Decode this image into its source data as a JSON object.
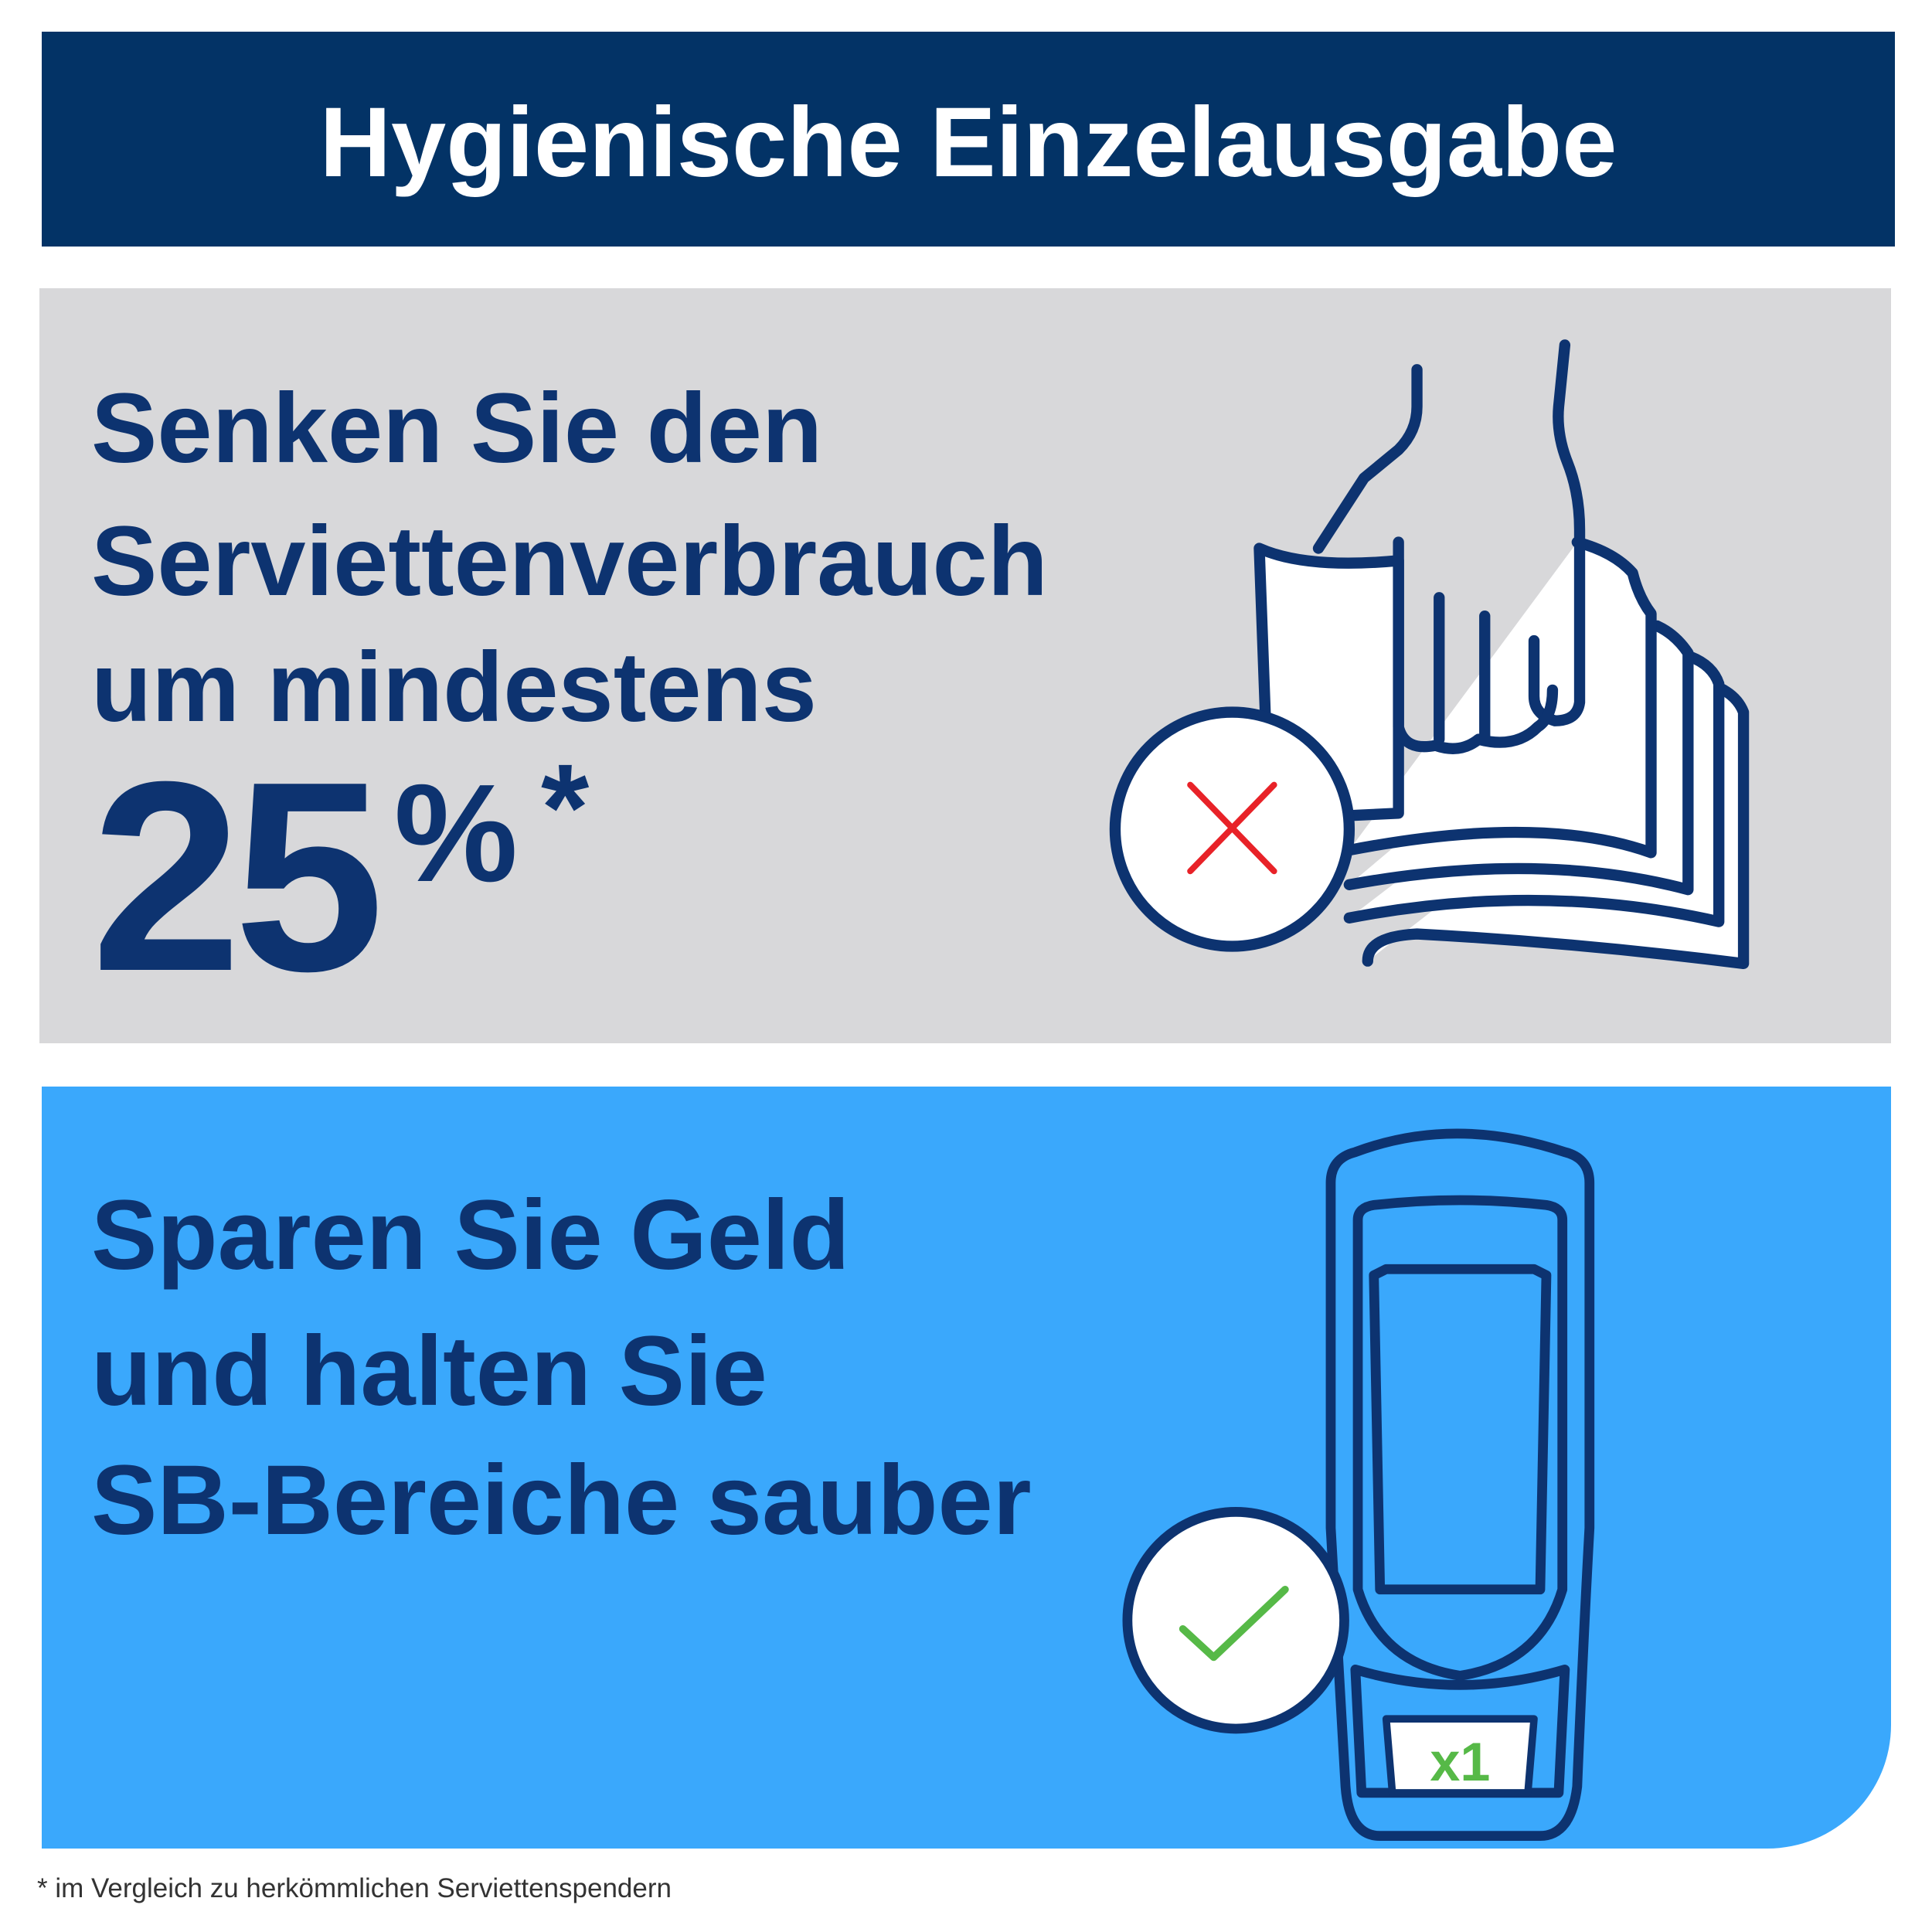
{
  "header": {
    "title": "Hygienische Einzelausgabe"
  },
  "panels": [
    {
      "lines": [
        "Senken Sie den",
        "Serviettenverbrauch",
        "um mindestens"
      ],
      "figure": "25",
      "unit": "%",
      "mark": "*"
    },
    {
      "lines": [
        "Sparen Sie Geld",
        "und halten Sie",
        "SB-Bereiche sauber"
      ],
      "icon_label": "x1"
    }
  ],
  "footnote": "* im Vergleich zu herkömmlichen Serviettenspendern"
}
